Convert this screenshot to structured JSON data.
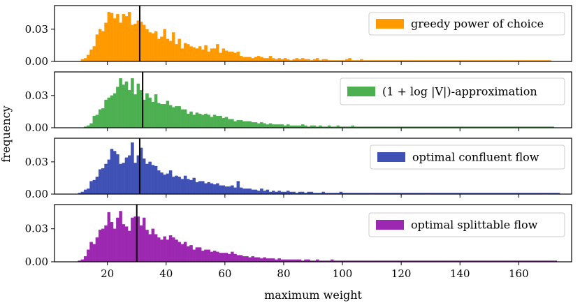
{
  "figure": {
    "ylabel": "frequency",
    "xlabel": "maximum weight",
    "xticks": [
      20,
      40,
      60,
      80,
      100,
      120,
      140,
      160
    ],
    "yticks": [
      "0.00",
      "0.03"
    ]
  },
  "chart_data": [
    {
      "type": "bar",
      "name": "greedy power of choice",
      "color": "#ff9900",
      "xlim": [
        2,
        178
      ],
      "ylim": [
        0,
        0.052
      ],
      "bin_width": 1,
      "x_start": 11,
      "mean_line": 31,
      "values": [
        0.002,
        0.003,
        0.006,
        0.011,
        0.014,
        0.025,
        0.03,
        0.028,
        0.036,
        0.046,
        0.045,
        0.04,
        0.044,
        0.036,
        0.044,
        0.042,
        0.046,
        0.034,
        0.035,
        0.038,
        0.037,
        0.034,
        0.03,
        0.027,
        0.026,
        0.028,
        0.021,
        0.023,
        0.03,
        0.021,
        0.019,
        0.027,
        0.016,
        0.021,
        0.012,
        0.017,
        0.016,
        0.014,
        0.013,
        0.012,
        0.014,
        0.011,
        0.015,
        0.009,
        0.012,
        0.012,
        0.016,
        0.008,
        0.012,
        0.01,
        0.009,
        0.009,
        0.008,
        0.009,
        0.005,
        0.004,
        0.004,
        0.004,
        0.003,
        0.004,
        0.005,
        0.004,
        0.003,
        0.003,
        0.005,
        0.003,
        0.002,
        0.003,
        0.002,
        0.003,
        0.002,
        0.001,
        0.002,
        0.003,
        0.002,
        0.003,
        0.002,
        0.002,
        0.001,
        0.002,
        0.003,
        0.001,
        0.002,
        0.002,
        0.001,
        0.001,
        0.001,
        0.001,
        0.001,
        0.001,
        0.002,
        0.003,
        0.001,
        0.001,
        0.001,
        0.002,
        0.001,
        0.001,
        0.001,
        0.001,
        0.001,
        0.001,
        0.001,
        0.001,
        0.001,
        0.001,
        0.001,
        0.001,
        0.001,
        0.001,
        0.001,
        0.001,
        0.001,
        0.001,
        0.001,
        0.001,
        0.001,
        0.001,
        0.001,
        0.001,
        0.001,
        0.001,
        0.001,
        0.001,
        0.001,
        0.001,
        0.001,
        0.001,
        0.001,
        0.001,
        0.001,
        0.001,
        0.001,
        0.001,
        0.001,
        0.001,
        0.001,
        0.001,
        0.001,
        0.001,
        0.001,
        0.001,
        0.001,
        0.001,
        0.001,
        0.001,
        0.001,
        0.001,
        0.001,
        0.001,
        0.001,
        0.001,
        0.001,
        0.001,
        0.001,
        0.001,
        0.001,
        0.001,
        0.001,
        0.001
      ]
    },
    {
      "type": "bar",
      "name": "(1 + log |V|)-approximation",
      "color": "#4caf50",
      "xlim": [
        2,
        178
      ],
      "ylim": [
        0,
        0.052
      ],
      "bin_width": 1,
      "x_start": 12,
      "mean_line": 32,
      "values": [
        0.001,
        0.002,
        0.004,
        0.011,
        0.012,
        0.017,
        0.018,
        0.026,
        0.028,
        0.03,
        0.032,
        0.038,
        0.046,
        0.04,
        0.043,
        0.035,
        0.046,
        0.031,
        0.041,
        0.035,
        0.026,
        0.032,
        0.028,
        0.024,
        0.031,
        0.023,
        0.022,
        0.022,
        0.025,
        0.021,
        0.019,
        0.02,
        0.02,
        0.017,
        0.017,
        0.013,
        0.015,
        0.012,
        0.014,
        0.013,
        0.012,
        0.013,
        0.012,
        0.01,
        0.012,
        0.011,
        0.011,
        0.009,
        0.01,
        0.008,
        0.008,
        0.006,
        0.007,
        0.007,
        0.006,
        0.006,
        0.006,
        0.005,
        0.005,
        0.004,
        0.005,
        0.004,
        0.003,
        0.004,
        0.003,
        0.003,
        0.003,
        0.003,
        0.002,
        0.003,
        0.002,
        0.002,
        0.002,
        0.002,
        0.003,
        0.002,
        0.001,
        0.002,
        0.002,
        0.001,
        0.002,
        0.001,
        0.001,
        0.002,
        0.001,
        0.001,
        0.002,
        0.001,
        0.001,
        0.001,
        0.001,
        0.002,
        0.001,
        0.001,
        0.001,
        0.001,
        0.001,
        0.001,
        0.001,
        0.001,
        0.001,
        0.001,
        0.001,
        0.001,
        0.001,
        0.001,
        0.001,
        0.001,
        0.001,
        0.001,
        0.001,
        0.001,
        0.001,
        0.001,
        0.001,
        0.001,
        0.001,
        0.001,
        0.001,
        0.001,
        0.001,
        0.001,
        0.001,
        0.001,
        0.001,
        0.001,
        0.001,
        0.001,
        0.001,
        0.001,
        0.001,
        0.001,
        0.001,
        0.001,
        0.001,
        0.001,
        0.001,
        0.001,
        0.001,
        0.001,
        0.001,
        0.001,
        0.001,
        0.001,
        0.001,
        0.001,
        0.001,
        0.001,
        0.001,
        0.001,
        0.001,
        0.001,
        0.001,
        0.001,
        0.001,
        0.001,
        0.001,
        0.001,
        0.001,
        0.001
      ]
    },
    {
      "type": "bar",
      "name": "optimal confluent flow",
      "color": "#3f51b5",
      "xlim": [
        2,
        178
      ],
      "ylim": [
        0,
        0.052
      ],
      "bin_width": 1,
      "x_start": 10,
      "mean_line": 31,
      "values": [
        0.001,
        0.002,
        0.004,
        0.005,
        0.012,
        0.013,
        0.016,
        0.023,
        0.024,
        0.028,
        0.032,
        0.042,
        0.04,
        0.037,
        0.028,
        0.029,
        0.034,
        0.036,
        0.048,
        0.029,
        0.036,
        0.043,
        0.033,
        0.028,
        0.03,
        0.027,
        0.026,
        0.022,
        0.02,
        0.018,
        0.019,
        0.022,
        0.016,
        0.017,
        0.016,
        0.014,
        0.017,
        0.014,
        0.013,
        0.015,
        0.011,
        0.012,
        0.012,
        0.01,
        0.011,
        0.01,
        0.009,
        0.01,
        0.008,
        0.008,
        0.007,
        0.007,
        0.008,
        0.006,
        0.012,
        0.006,
        0.005,
        0.005,
        0.005,
        0.004,
        0.004,
        0.003,
        0.005,
        0.003,
        0.004,
        0.002,
        0.003,
        0.002,
        0.003,
        0.002,
        0.002,
        0.003,
        0.002,
        0.002,
        0.001,
        0.002,
        0.002,
        0.001,
        0.002,
        0.002,
        0.001,
        0.001,
        0.001,
        0.002,
        0.001,
        0.001,
        0.001,
        0.001,
        0.001,
        0.002,
        0.001,
        0.001,
        0.001,
        0.001,
        0.001,
        0.001,
        0.001,
        0.001,
        0.001,
        0.001,
        0.001,
        0.001,
        0.001,
        0.001,
        0.001,
        0.001,
        0.001,
        0.001,
        0.001,
        0.001,
        0.001,
        0.001,
        0.001,
        0.001,
        0.001,
        0.001,
        0.001,
        0.001,
        0.001,
        0.001,
        0.001,
        0.001,
        0.001,
        0.001,
        0.001,
        0.001,
        0.001,
        0.001,
        0.001,
        0.001,
        0.001,
        0.001,
        0.001,
        0.001,
        0.001,
        0.001,
        0.001,
        0.001,
        0.001,
        0.001,
        0.001,
        0.001,
        0.001,
        0.001,
        0.001,
        0.001,
        0.001,
        0.001,
        0.001,
        0.001,
        0.001,
        0.001,
        0.001,
        0.001,
        0.001,
        0.001,
        0.001,
        0.001,
        0.001,
        0.001,
        0.001,
        0.001,
        0.001,
        0.001
      ]
    },
    {
      "type": "bar",
      "name": "optimal splittable flow",
      "color": "#9c27b0",
      "xlim": [
        2,
        178
      ],
      "ylim": [
        0,
        0.052
      ],
      "bin_width": 1,
      "x_start": 10,
      "mean_line": 30,
      "values": [
        0.001,
        0.002,
        0.005,
        0.011,
        0.018,
        0.016,
        0.022,
        0.029,
        0.03,
        0.033,
        0.045,
        0.036,
        0.03,
        0.04,
        0.046,
        0.034,
        0.032,
        0.028,
        0.04,
        0.041,
        0.041,
        0.033,
        0.04,
        0.029,
        0.025,
        0.03,
        0.025,
        0.022,
        0.02,
        0.023,
        0.02,
        0.024,
        0.022,
        0.02,
        0.018,
        0.016,
        0.018,
        0.014,
        0.015,
        0.011,
        0.013,
        0.013,
        0.01,
        0.011,
        0.011,
        0.009,
        0.01,
        0.009,
        0.008,
        0.008,
        0.008,
        0.007,
        0.009,
        0.007,
        0.006,
        0.006,
        0.005,
        0.005,
        0.004,
        0.005,
        0.004,
        0.004,
        0.003,
        0.004,
        0.003,
        0.003,
        0.003,
        0.002,
        0.003,
        0.002,
        0.002,
        0.002,
        0.002,
        0.002,
        0.002,
        0.002,
        0.001,
        0.002,
        0.002,
        0.001,
        0.001,
        0.002,
        0.001,
        0.001,
        0.001,
        0.001,
        0.002,
        0.001,
        0.001,
        0.001,
        0.001,
        0.001,
        0.001,
        0.001,
        0.001,
        0.001,
        0.001,
        0.001,
        0.001,
        0.001,
        0.001,
        0.001,
        0.001,
        0.001,
        0.001,
        0.001,
        0.001,
        0.001,
        0.001,
        0.001,
        0.001,
        0.001,
        0.001,
        0.001,
        0.001,
        0.001,
        0.001,
        0.001,
        0.001,
        0.001,
        0.001,
        0.001,
        0.001,
        0.001,
        0.001,
        0.001,
        0.001,
        0.001,
        0.001,
        0.001,
        0.001,
        0.001,
        0.001,
        0.001,
        0.001,
        0.001,
        0.001,
        0.001,
        0.001,
        0.001,
        0.001,
        0.001,
        0.001,
        0.001,
        0.001,
        0.001,
        0.001,
        0.001,
        0.001,
        0.001,
        0.001,
        0.001,
        0.001,
        0.001,
        0.001,
        0.001,
        0.001,
        0.001,
        0.001,
        0.001,
        0.001,
        0.001,
        0.001
      ]
    }
  ]
}
